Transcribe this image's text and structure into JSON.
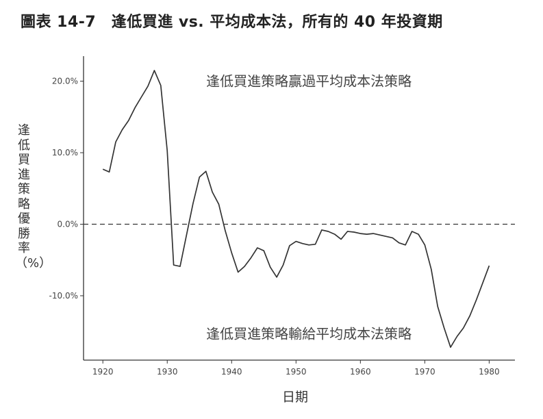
{
  "title": "圖表 14-7　逢低買進 vs. 平均成本法，所有的 40 年投資期",
  "chart_data": {
    "type": "line",
    "xlabel": "日期",
    "ylabel": "逢低買進策略優勝率（%）",
    "xlim": [
      1917,
      1984
    ],
    "ylim": [
      -19,
      23.5
    ],
    "xticks": [
      "1920",
      "1930",
      "1940",
      "1950",
      "1960",
      "1970",
      "1980"
    ],
    "xtick_values": [
      1920,
      1930,
      1940,
      1950,
      1960,
      1970,
      1980
    ],
    "yticks": [
      "20.0%",
      "10.0%",
      "0.0%",
      "-10.0%"
    ],
    "ytick_values": [
      20,
      10,
      0,
      -10
    ],
    "reference_line": {
      "y": 0,
      "style": "dashed"
    },
    "annotations": [
      {
        "text": "逢低買進策略贏過平均成本法策略",
        "x": 1952,
        "y": 20
      },
      {
        "text": "逢低買進策略輸給平均成本法策略",
        "x": 1952,
        "y": -15.3
      }
    ],
    "series": [
      {
        "values": [
          [
            1920,
            7.7
          ],
          [
            1921,
            7.3
          ],
          [
            1922,
            11.5
          ],
          [
            1923,
            13.2
          ],
          [
            1924,
            14.5
          ],
          [
            1925,
            16.3
          ],
          [
            1926,
            17.8
          ],
          [
            1927,
            19.3
          ],
          [
            1928,
            21.5
          ],
          [
            1929,
            19.4
          ],
          [
            1930,
            10.3
          ],
          [
            1931,
            -5.7
          ],
          [
            1932,
            -5.9
          ],
          [
            1933,
            -1.5
          ],
          [
            1934,
            2.9
          ],
          [
            1935,
            6.6
          ],
          [
            1936,
            7.4
          ],
          [
            1937,
            4.5
          ],
          [
            1938,
            2.8
          ],
          [
            1939,
            -0.9
          ],
          [
            1940,
            -4.0
          ],
          [
            1941,
            -6.7
          ],
          [
            1942,
            -5.9
          ],
          [
            1943,
            -4.7
          ],
          [
            1944,
            -3.3
          ],
          [
            1945,
            -3.7
          ],
          [
            1946,
            -6.0
          ],
          [
            1947,
            -7.4
          ],
          [
            1948,
            -5.7
          ],
          [
            1949,
            -3.0
          ],
          [
            1950,
            -2.4
          ],
          [
            1951,
            -2.7
          ],
          [
            1952,
            -2.9
          ],
          [
            1953,
            -2.8
          ],
          [
            1954,
            -0.8
          ],
          [
            1955,
            -1.0
          ],
          [
            1956,
            -1.4
          ],
          [
            1957,
            -2.1
          ],
          [
            1958,
            -1.0
          ],
          [
            1959,
            -1.1
          ],
          [
            1960,
            -1.3
          ],
          [
            1961,
            -1.4
          ],
          [
            1962,
            -1.3
          ],
          [
            1963,
            -1.5
          ],
          [
            1964,
            -1.7
          ],
          [
            1965,
            -1.9
          ],
          [
            1966,
            -2.6
          ],
          [
            1967,
            -2.9
          ],
          [
            1968,
            -1.0
          ],
          [
            1969,
            -1.4
          ],
          [
            1970,
            -2.9
          ],
          [
            1971,
            -6.3
          ],
          [
            1972,
            -11.5
          ],
          [
            1973,
            -14.5
          ],
          [
            1974,
            -17.2
          ],
          [
            1975,
            -15.7
          ],
          [
            1976,
            -14.5
          ],
          [
            1977,
            -12.8
          ],
          [
            1978,
            -10.6
          ],
          [
            1979,
            -8.2
          ],
          [
            1980,
            -5.8
          ]
        ]
      }
    ]
  }
}
